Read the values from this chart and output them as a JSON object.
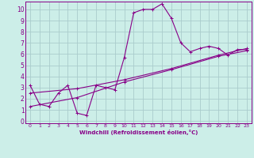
{
  "xlabel": "Windchill (Refroidissement éolien,°C)",
  "bg_color": "#cceee8",
  "grid_color": "#aacccc",
  "line_color": "#880088",
  "xlim": [
    -0.5,
    23.5
  ],
  "ylim": [
    -0.2,
    10.7
  ],
  "xticks": [
    0,
    1,
    2,
    3,
    4,
    5,
    6,
    7,
    8,
    9,
    10,
    11,
    12,
    13,
    14,
    15,
    16,
    17,
    18,
    19,
    20,
    21,
    22,
    23
  ],
  "yticks": [
    0,
    1,
    2,
    3,
    4,
    5,
    6,
    7,
    8,
    9,
    10
  ],
  "main_x": [
    0,
    1,
    2,
    3,
    4,
    5,
    6,
    7,
    8,
    9,
    10,
    11,
    12,
    13,
    14,
    15,
    16,
    17,
    18,
    19,
    20,
    21,
    22,
    23
  ],
  "main_y": [
    3.2,
    1.5,
    1.3,
    2.5,
    3.2,
    0.7,
    0.5,
    3.2,
    3.0,
    2.8,
    5.7,
    9.7,
    10.0,
    10.0,
    10.5,
    9.2,
    7.0,
    6.2,
    6.5,
    6.7,
    6.5,
    5.9,
    6.4,
    6.4
  ],
  "trend1_x": [
    0,
    5,
    10,
    15,
    20,
    23
  ],
  "trend1_y": [
    1.3,
    2.1,
    3.5,
    4.6,
    5.8,
    6.3
  ],
  "trend2_x": [
    0,
    5,
    10,
    15,
    20,
    23
  ],
  "trend2_y": [
    2.5,
    2.9,
    3.7,
    4.7,
    5.9,
    6.5
  ]
}
